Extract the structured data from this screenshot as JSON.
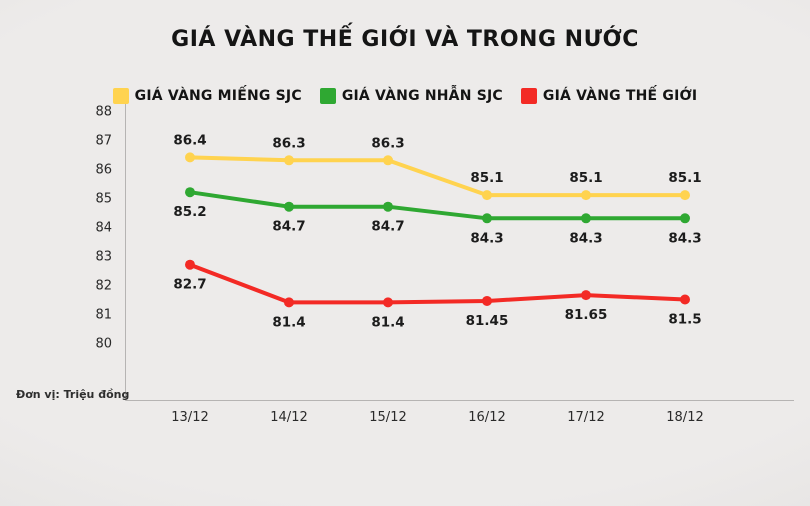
{
  "title": "GIÁ VÀNG THẾ GIỚI VÀ TRONG NƯỚC",
  "unit_note": "Đơn vị: Triệu đồng",
  "legend": [
    {
      "label": "GIÁ VÀNG MIẾNG SJC",
      "color": "#ffd34f"
    },
    {
      "label": "GIÁ VÀNG NHẪN SJC",
      "color": "#2fa832"
    },
    {
      "label": "GIÁ VÀNG THẾ GIỚI",
      "color": "#f32a25"
    }
  ],
  "chart_data": {
    "type": "line",
    "title": "GIÁ VÀNG THẾ GIỚI VÀ TRONG NƯỚC",
    "xlabel": "",
    "ylabel": "Đơn vị: Triệu đồng",
    "categories": [
      "13/12",
      "14/12",
      "15/12",
      "16/12",
      "17/12",
      "18/12"
    ],
    "series": [
      {
        "name": "GIÁ VÀNG MIẾNG SJC",
        "color": "#ffd34f",
        "label_position": "above",
        "values": [
          86.4,
          86.3,
          86.3,
          85.1,
          85.1,
          85.1
        ],
        "labels": [
          "86.4",
          "86.3",
          "86.3",
          "85.1",
          "85.1",
          "85.1"
        ]
      },
      {
        "name": "GIÁ VÀNG NHẪN SJC",
        "color": "#2fa832",
        "label_position": "below",
        "values": [
          85.2,
          84.7,
          84.7,
          84.3,
          84.3,
          84.3
        ],
        "labels": [
          "85.2",
          "84.7",
          "84.7",
          "84.3",
          "84.3",
          "84.3"
        ]
      },
      {
        "name": "GIÁ VÀNG THẾ GIỚI",
        "color": "#f32a25",
        "label_position": "below",
        "values": [
          82.7,
          81.4,
          81.4,
          81.45,
          81.65,
          81.5
        ],
        "labels": [
          "82.7",
          "81.4",
          "81.4",
          "81.45",
          "81.65",
          "81.5"
        ]
      }
    ],
    "y_ticks": [
      88,
      87,
      86,
      85,
      84,
      83,
      82,
      81,
      80
    ],
    "ylim": [
      80,
      88
    ],
    "grid": false,
    "legend_position": "top"
  }
}
